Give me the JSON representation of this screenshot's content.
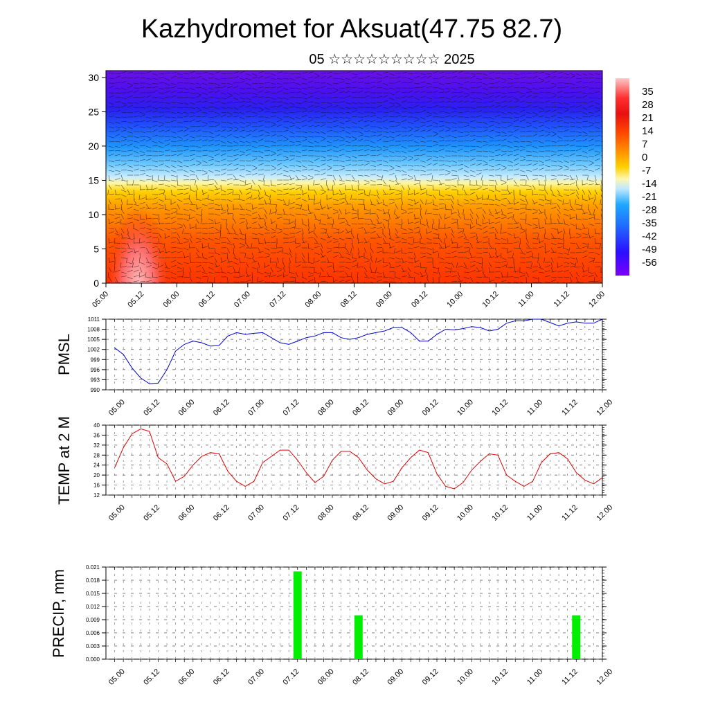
{
  "title": "Kazhydromet for Aksuat(47.75 82.7)",
  "subtitle": "05 ☆☆☆☆☆☆☆☆☆ 2025",
  "x_tick_labels": [
    "05.00",
    "05.12",
    "06.00",
    "06.12",
    "07.00",
    "07.12",
    "08.00",
    "08.12",
    "09.00",
    "09.12",
    "10.00",
    "10.12",
    "11.00",
    "11.12",
    "12.00"
  ],
  "chart_data": [
    {
      "type": "heatmap",
      "title": "",
      "xlabel": "",
      "ylabel": "",
      "ylim": [
        0,
        31
      ],
      "yticks": [
        0,
        5,
        10,
        15,
        20,
        25,
        30
      ],
      "overlay": "wind barbs",
      "colorbar_labels": [
        "35",
        "28",
        "21",
        "14",
        "7",
        "0",
        "-7",
        "-14",
        "-21",
        "-28",
        "-35",
        "-42",
        "-49",
        "-56"
      ],
      "colorbar_range": [
        -63,
        42
      ],
      "colors": {
        "cold": "#7a00ff",
        "cool": "#1e8fff",
        "neutral": "#ffffc0",
        "warm": "#ff3300",
        "hot": "#ffb0b0"
      }
    },
    {
      "type": "line",
      "ylabel": "PMSL",
      "ylim": [
        990,
        1011
      ],
      "yticks": [
        990,
        993,
        996,
        999,
        1002,
        1005,
        1008,
        1011
      ],
      "color": "#0000cc",
      "x": [
        0,
        1,
        2,
        3,
        4,
        5,
        6,
        7,
        8,
        9,
        10,
        11,
        12,
        13,
        14,
        15,
        16,
        17,
        18,
        19,
        20,
        21,
        22,
        23,
        24,
        25,
        26,
        27,
        28,
        29,
        30,
        31,
        32,
        33,
        34,
        35,
        36,
        37,
        38,
        39,
        40,
        41,
        42,
        43,
        44,
        45,
        46,
        47,
        48,
        49,
        50,
        51,
        52,
        53,
        54,
        55,
        56
      ],
      "series": [
        {
          "values": [
            1002.5,
            1000.5,
            996.5,
            993.5,
            991.8,
            992.0,
            996.0,
            1001.5,
            1003.5,
            1004.5,
            1004.0,
            1003.0,
            1003.2,
            1006.0,
            1007.0,
            1006.5,
            1006.8,
            1007.0,
            1005.5,
            1004.0,
            1003.5,
            1004.5,
            1005.5,
            1006.0,
            1007.0,
            1007.0,
            1005.5,
            1005.0,
            1005.5,
            1006.5,
            1007.0,
            1007.5,
            1008.5,
            1008.5,
            1007.0,
            1004.5,
            1004.5,
            1006.5,
            1008.0,
            1007.8,
            1008.2,
            1008.8,
            1008.5,
            1007.5,
            1008.0,
            1009.8,
            1010.5,
            1010.5,
            1011.0,
            1011.0,
            1010.0,
            1009.0,
            1009.8,
            1010.2,
            1009.8,
            1009.8,
            1011.0
          ]
        }
      ]
    },
    {
      "type": "line",
      "ylabel": "TEMP at 2 M",
      "ylim": [
        12,
        40
      ],
      "yticks": [
        12,
        16,
        20,
        24,
        28,
        32,
        36,
        40
      ],
      "color": "#dd0000",
      "x": [
        0,
        1,
        2,
        3,
        4,
        5,
        6,
        7,
        8,
        9,
        10,
        11,
        12,
        13,
        14,
        15,
        16,
        17,
        18,
        19,
        20,
        21,
        22,
        23,
        24,
        25,
        26,
        27,
        28,
        29,
        30,
        31,
        32,
        33,
        34,
        35,
        36,
        37,
        38,
        39,
        40,
        41,
        42,
        43,
        44,
        45,
        46,
        47,
        48,
        49,
        50,
        51,
        52,
        53,
        54,
        55,
        56
      ],
      "series": [
        {
          "values": [
            23,
            31,
            36.5,
            38.5,
            37.5,
            27,
            24.5,
            17.5,
            19.5,
            24,
            27.5,
            29,
            28.5,
            21.5,
            17.5,
            15.5,
            17.5,
            25,
            27.5,
            30,
            30,
            26,
            21,
            17,
            19.5,
            26,
            29.5,
            29.5,
            27,
            22,
            18.5,
            16.5,
            17.5,
            23,
            27,
            30,
            29,
            20.5,
            15.5,
            14.5,
            17,
            22,
            25.5,
            28.5,
            28,
            20,
            17.5,
            15.5,
            17.5,
            25,
            28.5,
            29,
            26.5,
            21,
            18,
            16.5,
            19
          ]
        }
      ]
    },
    {
      "type": "bar",
      "ylabel": "PRECIP, mm",
      "ylim": [
        0,
        0.021
      ],
      "yticks": [
        0.0,
        0.003,
        0.006,
        0.009,
        0.012,
        0.015,
        0.018,
        0.021
      ],
      "color": "#00ee00",
      "bars": [
        {
          "x": 21,
          "value": 0.02
        },
        {
          "x": 28,
          "value": 0.01
        },
        {
          "x": 53,
          "value": 0.01
        }
      ]
    }
  ]
}
